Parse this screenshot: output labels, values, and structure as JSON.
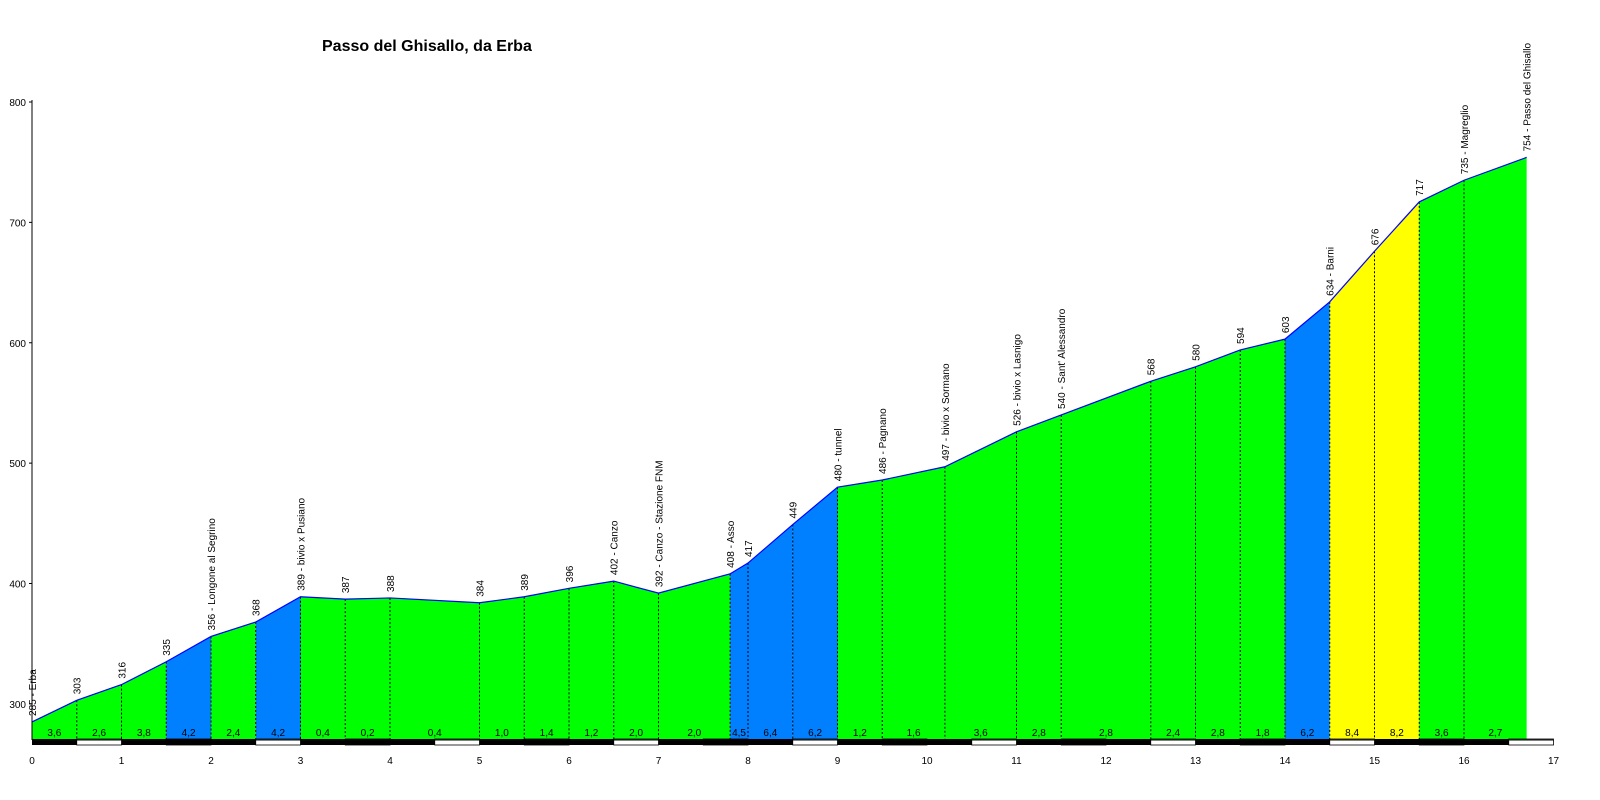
{
  "title": "Passo del Ghisallo, da Erba",
  "chart_data": {
    "type": "area",
    "title": "Passo del Ghisallo, da Erba",
    "xlabel": "",
    "ylabel": "",
    "xlim": [
      0,
      17
    ],
    "ylim": [
      270,
      800
    ],
    "x_ticks": [
      "0",
      "1",
      "2",
      "3",
      "4",
      "5",
      "6",
      "7",
      "8",
      "9",
      "10",
      "11",
      "12",
      "13",
      "14",
      "15",
      "16",
      "17"
    ],
    "y_ticks": [
      "300",
      "400",
      "500",
      "600",
      "700",
      "800"
    ],
    "grid": false,
    "colors": {
      "green": "#00ff00",
      "blue": "#0080ff",
      "yellow": "#ffff00",
      "line": "#0000ff"
    },
    "profile": [
      {
        "x": 0.0,
        "y": 285,
        "label": "285 - Erba"
      },
      {
        "x": 0.5,
        "y": 303,
        "label": "303"
      },
      {
        "x": 1.0,
        "y": 316,
        "label": "316"
      },
      {
        "x": 1.5,
        "y": 335,
        "label": "335"
      },
      {
        "x": 2.0,
        "y": 356,
        "label": "356 - Longone al Segrino"
      },
      {
        "x": 2.5,
        "y": 368,
        "label": "368"
      },
      {
        "x": 3.0,
        "y": 389,
        "label": "389 - bivio x Pusiano"
      },
      {
        "x": 3.5,
        "y": 387,
        "label": "387"
      },
      {
        "x": 4.0,
        "y": 388,
        "label": "388"
      },
      {
        "x": 5.0,
        "y": 384,
        "label": "384"
      },
      {
        "x": 5.5,
        "y": 389,
        "label": "389"
      },
      {
        "x": 6.0,
        "y": 396,
        "label": "396"
      },
      {
        "x": 6.5,
        "y": 402,
        "label": "402 - Canzo"
      },
      {
        "x": 7.0,
        "y": 392,
        "label": "392 - Canzo - Stazione FNM"
      },
      {
        "x": 7.8,
        "y": 408,
        "label": "408 - Asso"
      },
      {
        "x": 8.0,
        "y": 417,
        "label": "417"
      },
      {
        "x": 8.5,
        "y": 449,
        "label": "449"
      },
      {
        "x": 9.0,
        "y": 480,
        "label": "480 - tunnel"
      },
      {
        "x": 9.5,
        "y": 486,
        "label": "486 - Pagnano"
      },
      {
        "x": 10.2,
        "y": 497,
        "label": "497 - bivio x Sormano"
      },
      {
        "x": 11.0,
        "y": 526,
        "label": "526 - bivio x Lasnigo"
      },
      {
        "x": 11.5,
        "y": 540,
        "label": "540 - Sant' Alessandro"
      },
      {
        "x": 12.5,
        "y": 568,
        "label": "568"
      },
      {
        "x": 13.0,
        "y": 580,
        "label": "580"
      },
      {
        "x": 13.5,
        "y": 594,
        "label": "594"
      },
      {
        "x": 14.0,
        "y": 603,
        "label": "603"
      },
      {
        "x": 14.5,
        "y": 634,
        "label": "634 - Barni"
      },
      {
        "x": 15.0,
        "y": 676,
        "label": "676"
      },
      {
        "x": 15.5,
        "y": 717,
        "label": "717"
      },
      {
        "x": 16.0,
        "y": 735,
        "label": "735 - Magreglio"
      },
      {
        "x": 16.7,
        "y": 754,
        "label": "754 - Passo del Ghisallo"
      }
    ],
    "segments": [
      {
        "gradient": "3,6",
        "color": "green"
      },
      {
        "gradient": "2,6",
        "color": "green"
      },
      {
        "gradient": "3,8",
        "color": "green"
      },
      {
        "gradient": "4,2",
        "color": "blue"
      },
      {
        "gradient": "2,4",
        "color": "green"
      },
      {
        "gradient": "4,2",
        "color": "blue"
      },
      {
        "gradient": "0,4",
        "color": "green"
      },
      {
        "gradient": "0,2",
        "color": "green"
      },
      {
        "gradient": "0,4",
        "color": "green"
      },
      {
        "gradient": "1,0",
        "color": "green"
      },
      {
        "gradient": "1,4",
        "color": "green"
      },
      {
        "gradient": "1,2",
        "color": "green"
      },
      {
        "gradient": "2,0",
        "color": "green"
      },
      {
        "gradient": "2,0",
        "color": "green"
      },
      {
        "gradient": "4,5",
        "color": "blue"
      },
      {
        "gradient": "6,4",
        "color": "blue"
      },
      {
        "gradient": "6,2",
        "color": "blue"
      },
      {
        "gradient": "1,2",
        "color": "green"
      },
      {
        "gradient": "1,6",
        "color": "green"
      },
      {
        "gradient": "3,6",
        "color": "green"
      },
      {
        "gradient": "2,8",
        "color": "green"
      },
      {
        "gradient": "2,8",
        "color": "green"
      },
      {
        "gradient": "2,4",
        "color": "green"
      },
      {
        "gradient": "2,8",
        "color": "green"
      },
      {
        "gradient": "1,8",
        "color": "green"
      },
      {
        "gradient": "6,2",
        "color": "blue"
      },
      {
        "gradient": "8,4",
        "color": "yellow"
      },
      {
        "gradient": "8,2",
        "color": "yellow"
      },
      {
        "gradient": "3,6",
        "color": "green"
      },
      {
        "gradient": "2,7",
        "color": "green"
      }
    ]
  }
}
